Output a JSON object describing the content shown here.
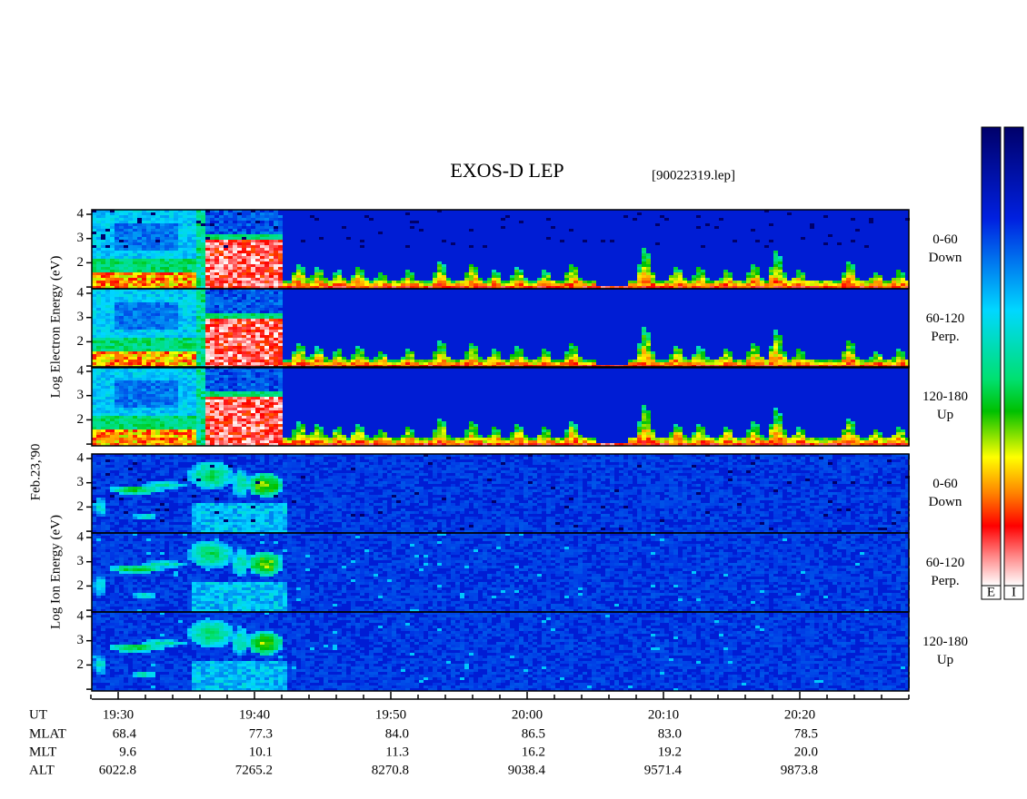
{
  "title": "EXOS-D LEP",
  "file": "[90022319.lep]",
  "date": "Feb.23,'90",
  "electron_axis_label": "Log Electron Energy (eV)",
  "ion_axis_label": "Log Ion Energy (eV)",
  "energy_ticks": [
    {
      "value": 1,
      "label": null
    },
    2,
    3,
    4
  ],
  "electron_panels": [
    {
      "angle": "0-60",
      "direction": "Down"
    },
    {
      "angle": "60-120",
      "direction": "Perp."
    },
    {
      "angle": "120-180",
      "direction": "Up"
    }
  ],
  "ion_panels": [
    {
      "angle": "0-60",
      "direction": "Down"
    },
    {
      "angle": "60-120",
      "direction": "Perp."
    },
    {
      "angle": "120-180",
      "direction": "Up"
    }
  ],
  "colorbars": [
    "E",
    "I"
  ],
  "ephemeris": {
    "labels": [
      "UT",
      "MLAT",
      "MLT",
      "ALT"
    ],
    "columns": [
      [
        "19:30",
        "68.4",
        "9.6",
        "6022.8"
      ],
      [
        "19:40",
        "77.3",
        "10.1",
        "7265.2"
      ],
      [
        "19:50",
        "84.0",
        "11.3",
        "8270.8"
      ],
      [
        "20:00",
        "86.5",
        "16.2",
        "9038.4"
      ],
      [
        "20:10",
        "83.0",
        "19.2",
        "9571.4"
      ],
      [
        "20:20",
        "78.5",
        "20.0",
        "9873.8"
      ]
    ]
  }
}
